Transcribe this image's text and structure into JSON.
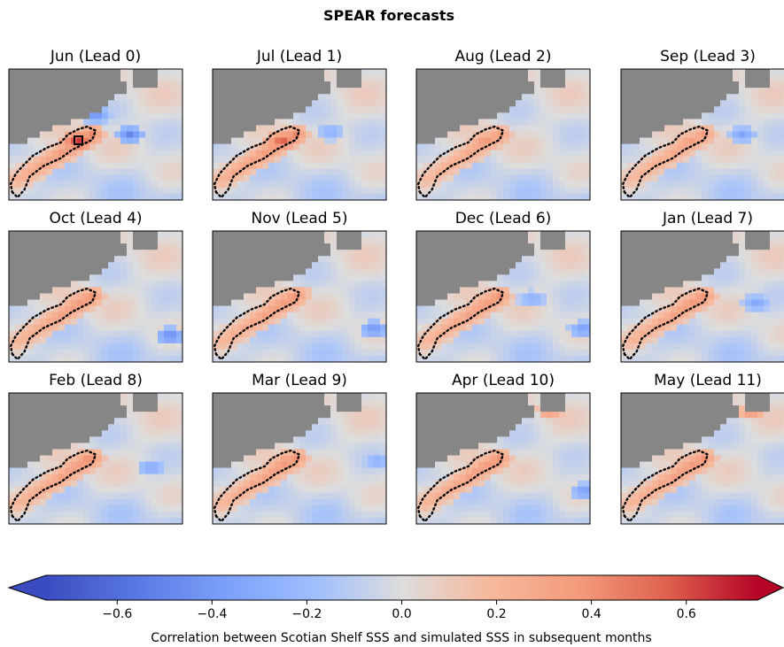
{
  "chart_data": {
    "type": "heatmap",
    "title": "SPEAR forecasts",
    "panels": [
      {
        "month": "Jun",
        "lead": 0,
        "label": "Jun (Lead 0)",
        "shelf_corr": 0.45,
        "hotspot_corr": 0.7,
        "blue_spots": [
          [
            0.5,
            0.35,
            -0.45
          ],
          [
            0.7,
            0.5,
            -0.5
          ]
        ],
        "red_spots": []
      },
      {
        "month": "Jul",
        "lead": 1,
        "label": "Jul (Lead 1)",
        "shelf_corr": 0.45,
        "hotspot_corr": 0.6,
        "blue_spots": [
          [
            0.68,
            0.48,
            -0.3
          ]
        ],
        "red_spots": []
      },
      {
        "month": "Aug",
        "lead": 2,
        "label": "Aug (Lead 2)",
        "shelf_corr": 0.35,
        "hotspot_corr": 0.4,
        "blue_spots": [],
        "red_spots": [
          [
            0.4,
            0.55,
            0.3
          ]
        ]
      },
      {
        "month": "Sep",
        "lead": 3,
        "label": "Sep (Lead 3)",
        "shelf_corr": 0.35,
        "hotspot_corr": 0.35,
        "blue_spots": [
          [
            0.7,
            0.5,
            -0.35
          ]
        ],
        "red_spots": [
          [
            0.43,
            0.53,
            0.3
          ]
        ]
      },
      {
        "month": "Oct",
        "lead": 4,
        "label": "Oct (Lead 4)",
        "shelf_corr": 0.4,
        "hotspot_corr": 0.35,
        "blue_spots": [
          [
            0.93,
            0.8,
            -0.5
          ]
        ],
        "red_spots": [
          [
            0.48,
            0.52,
            0.3
          ]
        ]
      },
      {
        "month": "Nov",
        "lead": 5,
        "label": "Nov (Lead 5)",
        "shelf_corr": 0.4,
        "hotspot_corr": 0.35,
        "blue_spots": [
          [
            0.93,
            0.75,
            -0.45
          ]
        ],
        "red_spots": [
          [
            0.5,
            0.48,
            0.3
          ]
        ]
      },
      {
        "month": "Dec",
        "lead": 6,
        "label": "Dec (Lead 6)",
        "shelf_corr": 0.4,
        "hotspot_corr": 0.35,
        "blue_spots": [
          [
            0.67,
            0.52,
            -0.3
          ],
          [
            0.96,
            0.75,
            -0.4
          ]
        ],
        "red_spots": [
          [
            0.48,
            0.48,
            0.35
          ]
        ]
      },
      {
        "month": "Jan",
        "lead": 7,
        "label": "Jan (Lead 7)",
        "shelf_corr": 0.4,
        "hotspot_corr": 0.35,
        "blue_spots": [
          [
            0.78,
            0.55,
            -0.35
          ]
        ],
        "red_spots": [
          [
            0.46,
            0.52,
            0.35
          ]
        ]
      },
      {
        "month": "Feb",
        "lead": 8,
        "label": "Feb (Lead 8)",
        "shelf_corr": 0.4,
        "hotspot_corr": 0.35,
        "blue_spots": [
          [
            0.82,
            0.57,
            -0.35
          ]
        ],
        "red_spots": [
          [
            0.45,
            0.5,
            0.4
          ],
          [
            0.35,
            0.28,
            0.3
          ]
        ]
      },
      {
        "month": "Mar",
        "lead": 9,
        "label": "Mar (Lead 9)",
        "shelf_corr": 0.4,
        "hotspot_corr": 0.35,
        "blue_spots": [
          [
            0.95,
            0.52,
            -0.3
          ]
        ],
        "red_spots": [
          [
            0.43,
            0.5,
            0.35
          ],
          [
            0.36,
            0.26,
            0.3
          ]
        ]
      },
      {
        "month": "Apr",
        "lead": 10,
        "label": "Apr (Lead 10)",
        "shelf_corr": 0.4,
        "hotspot_corr": 0.35,
        "blue_spots": [
          [
            0.97,
            0.75,
            -0.4
          ]
        ],
        "red_spots": [
          [
            0.4,
            0.25,
            0.4
          ],
          [
            0.77,
            0.14,
            0.4
          ]
        ]
      },
      {
        "month": "May",
        "lead": 11,
        "label": "May (Lead 11)",
        "shelf_corr": 0.4,
        "hotspot_corr": 0.35,
        "blue_spots": [],
        "red_spots": [
          [
            0.38,
            0.27,
            0.35
          ],
          [
            0.75,
            0.15,
            0.4
          ]
        ]
      }
    ],
    "colorbar": {
      "cmap": "coolwarm",
      "vmin": -0.75,
      "vmax": 0.75,
      "extend": "both",
      "ticks": [
        -0.6,
        -0.4,
        -0.2,
        0.0,
        0.2,
        0.4,
        0.6
      ],
      "tick_labels": [
        "−0.6",
        "−0.4",
        "−0.2",
        "0.0",
        "0.2",
        "0.4",
        "0.6"
      ],
      "label": "Correlation between Scotian Shelf SSS and simulated SSS in subsequent months"
    },
    "colors": {
      "land": "#868686",
      "outline": "#000000",
      "cold_end": "#3b4cc0",
      "neutral": "#dddddd",
      "warm_end": "#b40426"
    }
  }
}
